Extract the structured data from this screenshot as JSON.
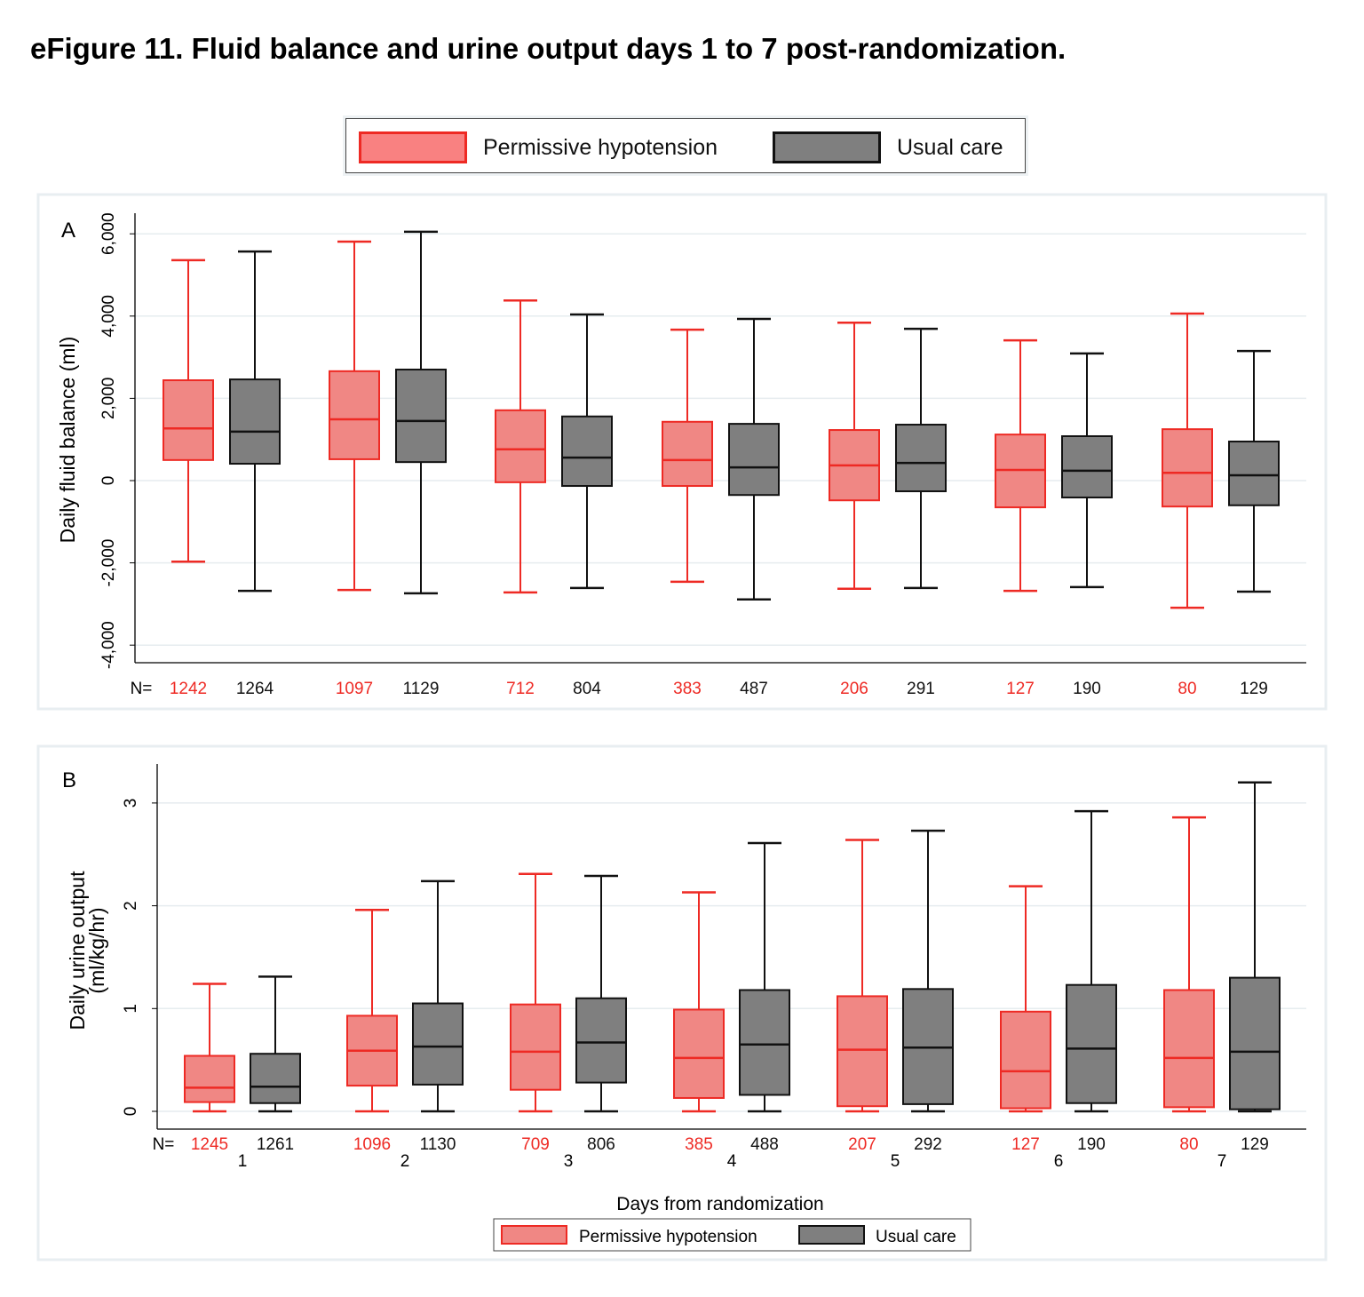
{
  "title": "eFigure 11. Fluid balance and urine output days 1 to 7 post-randomization.",
  "legend": {
    "items": [
      {
        "label": "Permissive hypotension",
        "fill": "#f08784",
        "stroke": "#ee2a24"
      },
      {
        "label": "Usual care",
        "fill": "#7f7f7f",
        "stroke": "#111111"
      }
    ]
  },
  "colors": {
    "ph_text": "#ee2a24",
    "uc_text": "#111111",
    "grid": "#e6ecef"
  },
  "chart_data": [
    {
      "type": "box",
      "panel_label": "A",
      "ylabel": [
        "Daily fluid balance (ml)"
      ],
      "ylim": [
        -4500,
        6500
      ],
      "yticks": [
        -4000,
        -2000,
        0,
        2000,
        4000,
        6000
      ],
      "ytick_labels": [
        "-4,000",
        "-2,000",
        "0",
        "2,000",
        "4,000",
        "6,000"
      ],
      "grid": true,
      "n_prefix": "N=",
      "categories": [
        "1",
        "2",
        "3",
        "4",
        "5",
        "6",
        "7"
      ],
      "show_categories": false,
      "series": [
        {
          "name": "Permissive hypotension",
          "n": [
            "1242",
            "1097",
            "712",
            "383",
            "206",
            "127",
            "80"
          ],
          "boxes": [
            {
              "low": -1970,
              "q1": 500,
              "median": 1270,
              "q3": 2440,
              "high": 5360
            },
            {
              "low": -2660,
              "q1": 520,
              "median": 1490,
              "q3": 2660,
              "high": 5810
            },
            {
              "low": -2720,
              "q1": -40,
              "median": 760,
              "q3": 1710,
              "high": 4380
            },
            {
              "low": -2460,
              "q1": -130,
              "median": 500,
              "q3": 1430,
              "high": 3670
            },
            {
              "low": -2630,
              "q1": -480,
              "median": 370,
              "q3": 1230,
              "high": 3840
            },
            {
              "low": -2680,
              "q1": -650,
              "median": 260,
              "q3": 1120,
              "high": 3410
            },
            {
              "low": -3090,
              "q1": -630,
              "median": 190,
              "q3": 1250,
              "high": 4060
            }
          ]
        },
        {
          "name": "Usual care",
          "n": [
            "1264",
            "1129",
            "804",
            "487",
            "291",
            "190",
            "129"
          ],
          "boxes": [
            {
              "low": -2680,
              "q1": 410,
              "median": 1190,
              "q3": 2460,
              "high": 5570
            },
            {
              "low": -2740,
              "q1": 450,
              "median": 1450,
              "q3": 2700,
              "high": 6050
            },
            {
              "low": -2610,
              "q1": -130,
              "median": 560,
              "q3": 1560,
              "high": 4040
            },
            {
              "low": -2890,
              "q1": -350,
              "median": 320,
              "q3": 1380,
              "high": 3930
            },
            {
              "low": -2610,
              "q1": -260,
              "median": 430,
              "q3": 1360,
              "high": 3690
            },
            {
              "low": -2590,
              "q1": -410,
              "median": 240,
              "q3": 1080,
              "high": 3090
            },
            {
              "low": -2700,
              "q1": -600,
              "median": 130,
              "q3": 950,
              "high": 3150
            }
          ]
        }
      ]
    },
    {
      "type": "box",
      "panel_label": "B",
      "ylabel": [
        "Daily urine output",
        "(ml/kg/hr)"
      ],
      "ylim": [
        -0.17,
        3.4
      ],
      "yticks": [
        0,
        1,
        2,
        3
      ],
      "ytick_labels": [
        "0",
        "1",
        "2",
        "3"
      ],
      "grid": true,
      "n_prefix": "N=",
      "xlabel": "Days from randomization",
      "categories": [
        "1",
        "2",
        "3",
        "4",
        "5",
        "6",
        "7"
      ],
      "show_categories": true,
      "series": [
        {
          "name": "Permissive hypotension",
          "n": [
            "1245",
            "1096",
            "709",
            "385",
            "207",
            "127",
            "80"
          ],
          "boxes": [
            {
              "low": 0,
              "q1": 0.09,
              "median": 0.23,
              "q3": 0.54,
              "high": 1.24
            },
            {
              "low": 0,
              "q1": 0.25,
              "median": 0.59,
              "q3": 0.93,
              "high": 1.96
            },
            {
              "low": 0,
              "q1": 0.21,
              "median": 0.58,
              "q3": 1.04,
              "high": 2.31
            },
            {
              "low": 0,
              "q1": 0.13,
              "median": 0.52,
              "q3": 0.99,
              "high": 2.13
            },
            {
              "low": 0,
              "q1": 0.05,
              "median": 0.6,
              "q3": 1.12,
              "high": 2.64
            },
            {
              "low": 0,
              "q1": 0.03,
              "median": 0.39,
              "q3": 0.97,
              "high": 2.19
            },
            {
              "low": 0,
              "q1": 0.04,
              "median": 0.52,
              "q3": 1.18,
              "high": 2.86
            }
          ]
        },
        {
          "name": "Usual care",
          "n": [
            "1261",
            "1130",
            "806",
            "488",
            "292",
            "190",
            "129"
          ],
          "boxes": [
            {
              "low": 0,
              "q1": 0.08,
              "median": 0.24,
              "q3": 0.56,
              "high": 1.31
            },
            {
              "low": 0,
              "q1": 0.26,
              "median": 0.63,
              "q3": 1.05,
              "high": 2.24
            },
            {
              "low": 0,
              "q1": 0.28,
              "median": 0.67,
              "q3": 1.1,
              "high": 2.29
            },
            {
              "low": 0,
              "q1": 0.16,
              "median": 0.65,
              "q3": 1.18,
              "high": 2.61
            },
            {
              "low": 0,
              "q1": 0.07,
              "median": 0.62,
              "q3": 1.19,
              "high": 2.73
            },
            {
              "low": 0,
              "q1": 0.08,
              "median": 0.61,
              "q3": 1.23,
              "high": 2.92
            },
            {
              "low": 0,
              "q1": 0.02,
              "median": 0.58,
              "q3": 1.3,
              "high": 3.2
            }
          ]
        }
      ]
    }
  ]
}
